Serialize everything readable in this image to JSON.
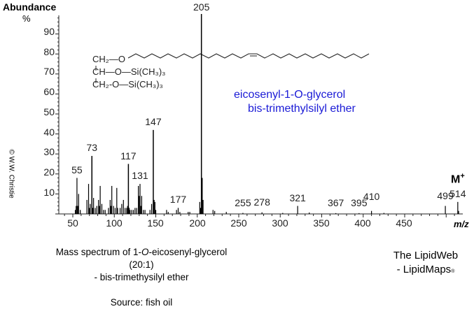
{
  "chart_data": {
    "type": "bar",
    "title": "Mass spectrum of 1-O-eicosenyl-glycerol (20:1) - bis-trimethysilyl ether",
    "subtitle": "Source: fish oil",
    "xlabel": "m/z",
    "ylabel": "Abundance %",
    "xlim": [
      35,
      520
    ],
    "ylim": [
      0,
      100
    ],
    "xticks": [
      50,
      100,
      150,
      200,
      250,
      300,
      350,
      400,
      450
    ],
    "yticks": [
      10,
      20,
      30,
      40,
      50,
      60,
      70,
      80,
      90
    ],
    "grid": false,
    "peaks": [
      {
        "mz": 53,
        "value": 2
      },
      {
        "mz": 54,
        "value": 4
      },
      {
        "mz": 55,
        "value": 18,
        "label": "55"
      },
      {
        "mz": 56,
        "value": 4
      },
      {
        "mz": 57,
        "value": 10
      },
      {
        "mz": 59,
        "value": 2
      },
      {
        "mz": 67,
        "value": 7
      },
      {
        "mz": 69,
        "value": 15
      },
      {
        "mz": 70,
        "value": 3
      },
      {
        "mz": 71,
        "value": 5
      },
      {
        "mz": 73,
        "value": 29,
        "label": "73"
      },
      {
        "mz": 74,
        "value": 3
      },
      {
        "mz": 75,
        "value": 8
      },
      {
        "mz": 77,
        "value": 3
      },
      {
        "mz": 79,
        "value": 4
      },
      {
        "mz": 81,
        "value": 7
      },
      {
        "mz": 82,
        "value": 4
      },
      {
        "mz": 83,
        "value": 14
      },
      {
        "mz": 85,
        "value": 5
      },
      {
        "mz": 87,
        "value": 2
      },
      {
        "mz": 89,
        "value": 2
      },
      {
        "mz": 93,
        "value": 3
      },
      {
        "mz": 95,
        "value": 7
      },
      {
        "mz": 96,
        "value": 4
      },
      {
        "mz": 97,
        "value": 14
      },
      {
        "mz": 99,
        "value": 4
      },
      {
        "mz": 101,
        "value": 3
      },
      {
        "mz": 103,
        "value": 13
      },
      {
        "mz": 104,
        "value": 3
      },
      {
        "mz": 107,
        "value": 3
      },
      {
        "mz": 109,
        "value": 5
      },
      {
        "mz": 111,
        "value": 7
      },
      {
        "mz": 113,
        "value": 3
      },
      {
        "mz": 115,
        "value": 3
      },
      {
        "mz": 116,
        "value": 4
      },
      {
        "mz": 117,
        "value": 25,
        "label": "117"
      },
      {
        "mz": 118,
        "value": 3
      },
      {
        "mz": 119,
        "value": 2
      },
      {
        "mz": 121,
        "value": 2
      },
      {
        "mz": 123,
        "value": 2
      },
      {
        "mz": 125,
        "value": 3
      },
      {
        "mz": 127,
        "value": 3
      },
      {
        "mz": 129,
        "value": 14
      },
      {
        "mz": 130,
        "value": 9
      },
      {
        "mz": 131,
        "value": 15,
        "label": "131"
      },
      {
        "mz": 132,
        "value": 4
      },
      {
        "mz": 133,
        "value": 9
      },
      {
        "mz": 135,
        "value": 2
      },
      {
        "mz": 137,
        "value": 2
      },
      {
        "mz": 143,
        "value": 2
      },
      {
        "mz": 145,
        "value": 5
      },
      {
        "mz": 147,
        "value": 42,
        "label": "147"
      },
      {
        "mz": 148,
        "value": 7
      },
      {
        "mz": 149,
        "value": 6
      },
      {
        "mz": 150,
        "value": 2
      },
      {
        "mz": 163,
        "value": 2
      },
      {
        "mz": 165,
        "value": 1
      },
      {
        "mz": 175,
        "value": 2
      },
      {
        "mz": 177,
        "value": 3,
        "label": "177"
      },
      {
        "mz": 179,
        "value": 1
      },
      {
        "mz": 189,
        "value": 1
      },
      {
        "mz": 191,
        "value": 1
      },
      {
        "mz": 203,
        "value": 6
      },
      {
        "mz": 204,
        "value": 3
      },
      {
        "mz": 205,
        "value": 100,
        "label": "205"
      },
      {
        "mz": 206,
        "value": 18
      },
      {
        "mz": 207,
        "value": 7
      },
      {
        "mz": 219,
        "value": 2
      },
      {
        "mz": 221,
        "value": 1.5
      },
      {
        "mz": 235,
        "value": 1
      },
      {
        "mz": 255,
        "value": 0.5,
        "label": "255"
      },
      {
        "mz": 278,
        "value": 0.8,
        "label": "278"
      },
      {
        "mz": 303,
        "value": 0.5
      },
      {
        "mz": 321,
        "value": 4,
        "label": "321"
      },
      {
        "mz": 335,
        "value": 0.7
      },
      {
        "mz": 367,
        "value": 0.4,
        "label": "367"
      },
      {
        "mz": 395,
        "value": 0.4,
        "label": "395"
      },
      {
        "mz": 410,
        "value": 1.5,
        "label": "410"
      },
      {
        "mz": 425,
        "value": 0.5
      },
      {
        "mz": 499,
        "value": 4,
        "label": "499"
      },
      {
        "mz": 514,
        "value": 6,
        "label": "514"
      },
      {
        "mz": 515,
        "value": 1.5
      }
    ],
    "annotations": [
      "M+",
      "eicosenyl-1-O-glycerol",
      "bis-trimethylsilyl ether"
    ]
  },
  "axis": {
    "y_title": "Abundance",
    "y_unit": "%",
    "x_title": "m/z",
    "y_ticks": [
      "90",
      "80",
      "70",
      "60",
      "50",
      "40",
      "30",
      "20",
      "10"
    ],
    "x_ticks": [
      "50",
      "100",
      "150",
      "200",
      "250",
      "300",
      "350",
      "400",
      "450"
    ]
  },
  "molecular_ion": {
    "label": "M",
    "charge": "+"
  },
  "compound": {
    "line1": "eicosenyl-1-O-glycerol",
    "line2": "bis-trimethylsilyl ether",
    "color": "#1a1ad6"
  },
  "structure": {
    "row1": "CH₂—O",
    "row2": "CH—O—Si(CH₃)₃",
    "row3": "CH₂-O—Si(CH₃)₃"
  },
  "copyright": "© W.W. Christie",
  "caption": {
    "line1_pre": "Mass spectrum of 1-",
    "line1_italic": "O",
    "line1_post": "-eicosenyl-glycerol (20:1)",
    "line2": "- bis-trimethysilyl ether",
    "source": "Source: fish oil"
  },
  "brand": {
    "line1": "The LipidWeb",
    "line2": "- LipidMaps",
    "mark": "®"
  }
}
